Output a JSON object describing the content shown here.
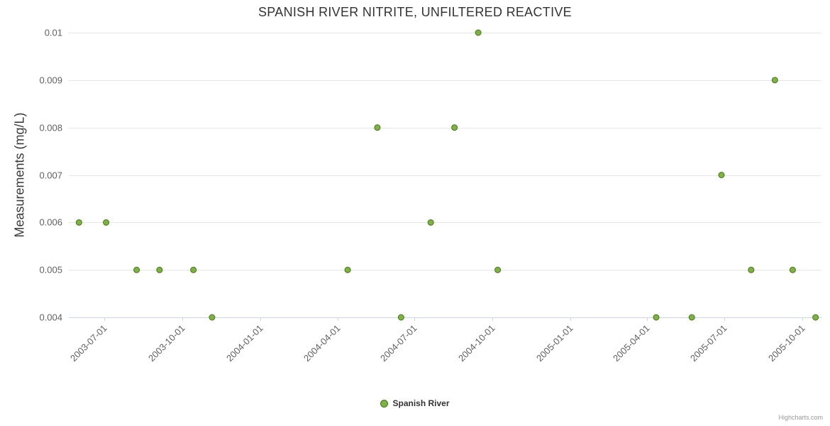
{
  "chart": {
    "credits": "Highcharts.com"
  },
  "chart_data": {
    "type": "scatter",
    "title": "SPANISH RIVER NITRITE, UNFILTERED REACTIVE",
    "xlabel": "",
    "ylabel": "Measurements (mg/L)",
    "ylim": [
      0.004,
      0.01
    ],
    "xlim": [
      "2003-05-20",
      "2005-10-24"
    ],
    "yticks": [
      0.004,
      0.005,
      0.006,
      0.007,
      0.008,
      0.009,
      0.01
    ],
    "xticks": [
      "2003-07-01",
      "2003-10-01",
      "2004-01-01",
      "2004-04-01",
      "2004-07-01",
      "2004-10-01",
      "2005-01-01",
      "2005-04-01",
      "2005-07-01",
      "2005-10-01"
    ],
    "grid": true,
    "legend_position": "bottom",
    "series": [
      {
        "name": "Spanish River",
        "color": "#7cb342",
        "border_color": "#4a7519",
        "points": [
          [
            "2003-06-01",
            0.006
          ],
          [
            "2003-07-03",
            0.006
          ],
          [
            "2003-08-08",
            0.005
          ],
          [
            "2003-09-04",
            0.005
          ],
          [
            "2003-10-14",
            0.005
          ],
          [
            "2003-11-05",
            0.004
          ],
          [
            "2004-04-13",
            0.005
          ],
          [
            "2004-05-18",
            0.008
          ],
          [
            "2004-06-15",
            0.004
          ],
          [
            "2004-07-20",
            0.006
          ],
          [
            "2004-08-17",
            0.008
          ],
          [
            "2004-09-14",
            0.01
          ],
          [
            "2004-10-07",
            0.005
          ],
          [
            "2005-04-12",
            0.004
          ],
          [
            "2005-05-24",
            0.004
          ],
          [
            "2005-06-28",
            0.007
          ],
          [
            "2005-08-02",
            0.005
          ],
          [
            "2005-08-30",
            0.009
          ],
          [
            "2005-09-20",
            0.005
          ],
          [
            "2005-10-17",
            0.004
          ]
        ]
      }
    ]
  }
}
